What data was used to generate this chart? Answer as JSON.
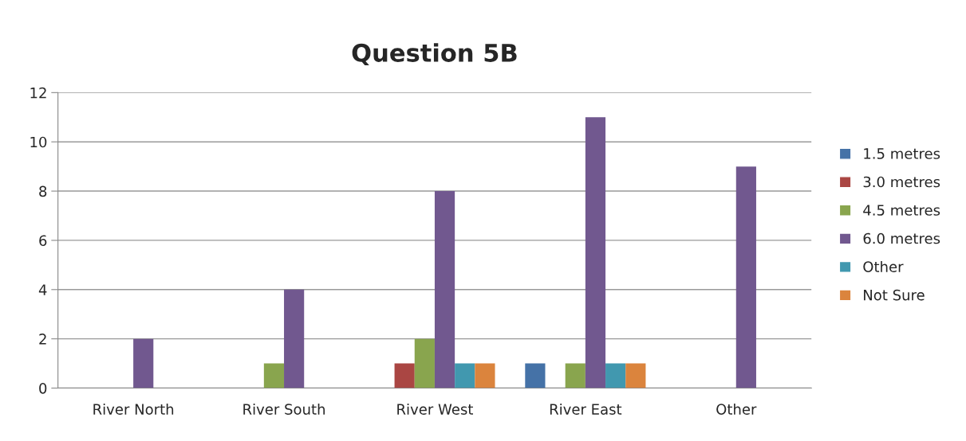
{
  "chart_data": {
    "type": "bar",
    "title": "Question 5B",
    "categories": [
      "River North",
      "River South",
      "River West",
      "River East",
      "Other"
    ],
    "series": [
      {
        "name": "1.5 metres",
        "color": "#4572a7",
        "values": [
          null,
          null,
          null,
          1,
          null
        ]
      },
      {
        "name": "3.0 metres",
        "color": "#aa4643",
        "values": [
          null,
          null,
          1,
          null,
          null
        ]
      },
      {
        "name": "4.5 metres",
        "color": "#89a54e",
        "values": [
          null,
          1,
          2,
          1,
          null
        ]
      },
      {
        "name": "6.0 metres",
        "color": "#71588f",
        "values": [
          2,
          4,
          8,
          11,
          9
        ]
      },
      {
        "name": "Other",
        "color": "#4198af",
        "values": [
          null,
          null,
          1,
          1,
          null
        ]
      },
      {
        "name": "Not Sure",
        "color": "#db843d",
        "values": [
          null,
          null,
          1,
          1,
          null
        ]
      }
    ],
    "ylim": [
      0,
      12
    ],
    "yticks": [
      0,
      2,
      4,
      6,
      8,
      10,
      12
    ],
    "grid": "y",
    "legend": "right"
  }
}
